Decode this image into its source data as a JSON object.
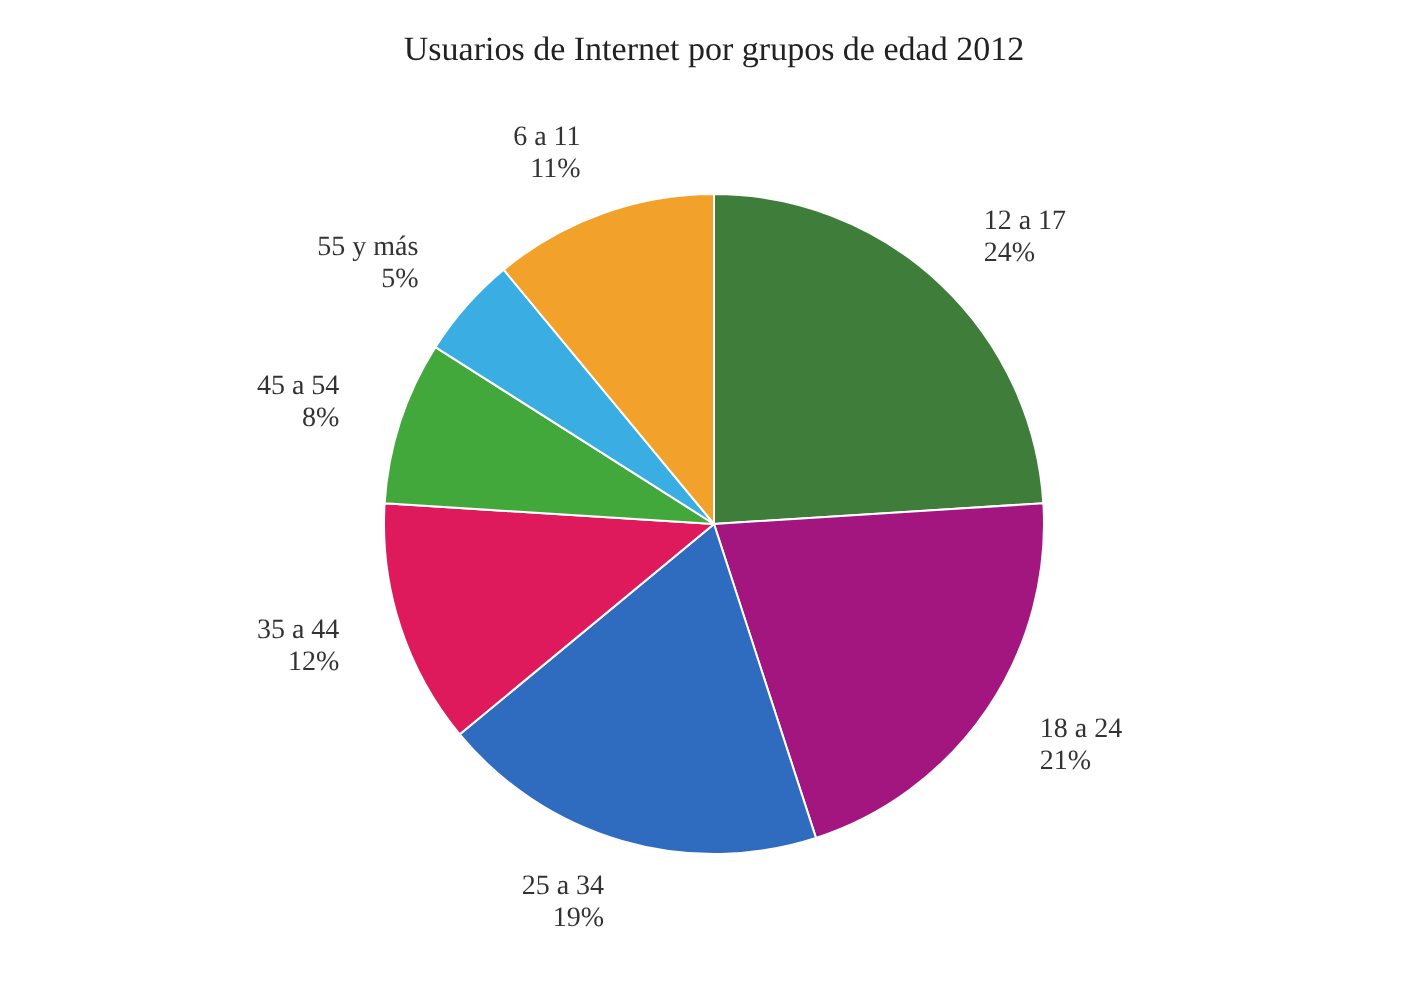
{
  "chart_data": {
    "type": "pie",
    "title": "Usuarios de Internet por grupos de edad 2012",
    "categories": [
      "12 a 17",
      "18 a 24",
      "25 a 34",
      "35 a 44",
      "45 a 54",
      "55 y más",
      "6 a 11"
    ],
    "values": [
      24,
      21,
      19,
      12,
      8,
      5,
      11
    ],
    "value_labels": [
      "24%",
      "21%",
      "19%",
      "12%",
      "8%",
      "5%",
      "11%"
    ],
    "colors": [
      "#3f7d3a",
      "#a3157f",
      "#2f6cc0",
      "#de1a5c",
      "#43a83c",
      "#3aaee2",
      "#f2a22a"
    ]
  }
}
